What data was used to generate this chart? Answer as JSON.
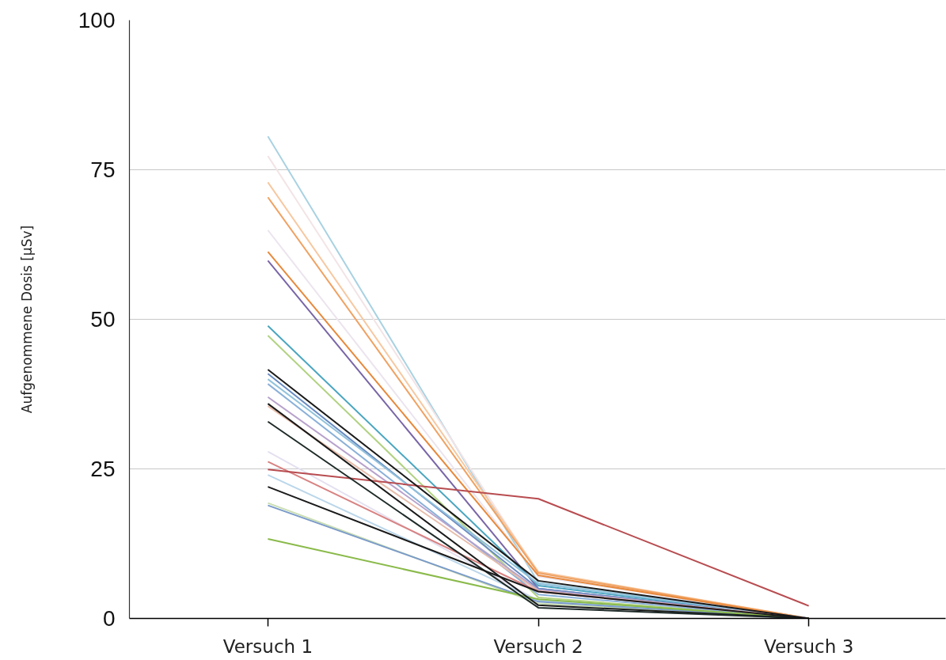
{
  "chart_data": {
    "type": "line",
    "categories": [
      "Versuch 1",
      "Versuch 2",
      "Versuch 3"
    ],
    "ylabel": "Aufgenommene Dosis [µSv]",
    "ylim": [
      0,
      100
    ],
    "yticks": [
      0,
      25,
      50,
      75,
      100
    ],
    "grid": "y",
    "series": [
      {
        "color": "#a9d2e2",
        "values": [
          80.6,
          6.0,
          0
        ]
      },
      {
        "color": "#f3e4e6",
        "values": [
          77.3,
          7.5,
          0
        ]
      },
      {
        "color": "#f7c8a0",
        "values": [
          72.9,
          7.8,
          0
        ]
      },
      {
        "color": "#f0a262",
        "values": [
          70.4,
          7.6,
          0
        ]
      },
      {
        "color": "#ece4ee",
        "values": [
          64.9,
          7.0,
          0
        ]
      },
      {
        "color": "#e8893c",
        "values": [
          61.3,
          7.2,
          0
        ]
      },
      {
        "color": "#7966a8",
        "values": [
          59.8,
          5.0,
          0
        ]
      },
      {
        "color": "#4aa6c0",
        "values": [
          48.9,
          5.5,
          0
        ]
      },
      {
        "color": "#b2d282",
        "values": [
          47.3,
          3.5,
          0
        ]
      },
      {
        "color": "#6a8cc2",
        "values": [
          40.9,
          5.0,
          0
        ]
      },
      {
        "color": "#92c2dc",
        "values": [
          40.0,
          5.8,
          0
        ]
      },
      {
        "color": "#8ab0d8",
        "values": [
          39.2,
          4.0,
          0
        ]
      },
      {
        "color": "#b8a2cc",
        "values": [
          37.0,
          4.8,
          0
        ]
      },
      {
        "color": "#e8bcaa",
        "values": [
          35.5,
          4.6,
          0
        ]
      },
      {
        "color": "#e4e0f0",
        "values": [
          27.9,
          3.0,
          0
        ]
      },
      {
        "color": "#d88282",
        "values": [
          26.2,
          4.5,
          0
        ]
      },
      {
        "color": "#b84c50",
        "values": [
          24.9,
          20.0,
          2.1
        ]
      },
      {
        "color": "#bad6ea",
        "values": [
          24.0,
          3.0,
          0
        ]
      },
      {
        "color": "#cadeb2",
        "values": [
          19.3,
          2.5,
          0
        ]
      },
      {
        "color": "#7a9aca",
        "values": [
          18.9,
          2.8,
          0
        ]
      },
      {
        "color": "#8aba4a",
        "values": [
          13.3,
          3.2,
          0
        ]
      },
      {
        "color": "#1a1a1a",
        "values": [
          41.6,
          6.3,
          0
        ]
      },
      {
        "color": "#1a1a1a",
        "values": [
          35.9,
          2.2,
          0
        ]
      },
      {
        "color": "#1e2a28",
        "values": [
          32.9,
          1.8,
          0
        ]
      },
      {
        "color": "#1a1a1a",
        "values": [
          22.0,
          4.5,
          0
        ]
      }
    ]
  }
}
